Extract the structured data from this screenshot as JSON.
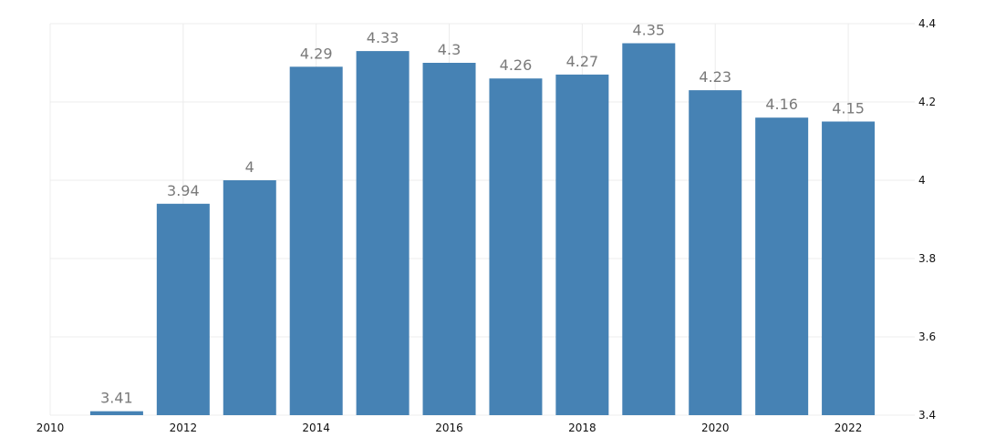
{
  "chart_data": {
    "type": "bar",
    "x": [
      2011,
      2012,
      2013,
      2014,
      2015,
      2016,
      2017,
      2018,
      2019,
      2020,
      2021,
      2022
    ],
    "values": [
      3.41,
      3.94,
      4,
      4.29,
      4.33,
      4.3,
      4.26,
      4.27,
      4.35,
      4.23,
      4.16,
      4.15
    ],
    "data_labels": [
      "3.41",
      "3.94",
      "4",
      "4.29",
      "4.33",
      "4.3",
      "4.26",
      "4.27",
      "4.35",
      "4.23",
      "4.16",
      "4.15"
    ],
    "xlim": [
      2010,
      2023
    ],
    "x_ticks": [
      2010,
      2012,
      2014,
      2016,
      2018,
      2020,
      2022
    ],
    "x_tick_labels": [
      "2010",
      "2012",
      "2014",
      "2016",
      "2018",
      "2020",
      "2022"
    ],
    "ylim": [
      3.4,
      4.4
    ],
    "y_ticks": [
      3.4,
      3.6,
      3.8,
      4,
      4.2,
      4.4
    ],
    "y_tick_labels": [
      "3.4",
      "3.6",
      "3.8",
      "4",
      "4.2",
      "4.4"
    ],
    "y_axis_side": "right",
    "grid": true,
    "title": "",
    "xlabel": "",
    "ylabel": "",
    "bar_color": "#4682b4",
    "data_label_color": "#7a7a7a",
    "grid_color": "#ececec"
  }
}
